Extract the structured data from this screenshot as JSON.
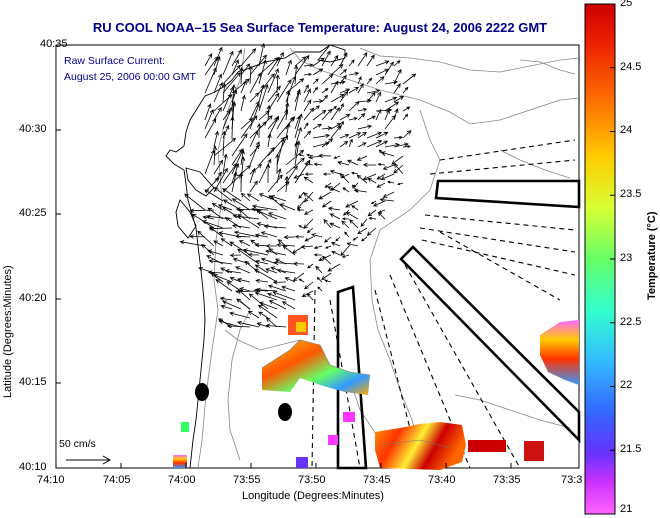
{
  "title": "RU COOL  NOAA–15  Sea Surface Temperature:  August 24, 2006 2222 GMT",
  "current_note": {
    "line1": "Raw Surface Current:",
    "line2": "August 25, 2006 00:00 GMT"
  },
  "x_axis": {
    "label": "Longitude (Degrees:Minutes)",
    "ticks": [
      "74:10",
      "74:05",
      "74:00",
      "73:55",
      "73:50",
      "73:45",
      "73:40",
      "73:35",
      "73:3"
    ]
  },
  "y_axis": {
    "label": "Latitude (Degrees:Minutes)",
    "ticks": [
      "40:35",
      "40:30",
      "40:25",
      "40:20",
      "40:15",
      "40:10"
    ]
  },
  "scale_label": "50 cm/s",
  "colorbar": {
    "title": "Temperature (°C)",
    "ticks": [
      "25",
      "24.5",
      "24",
      "23.5",
      "23",
      "22.5",
      "22",
      "21.5",
      "21"
    ],
    "colors": [
      "#cc0000",
      "#ee3300",
      "#ff7700",
      "#ffcc00",
      "#d8ff33",
      "#66ff66",
      "#33ffcc",
      "#33bbff",
      "#3366ff",
      "#6633ff",
      "#cc33ff",
      "#ff55ff"
    ]
  }
}
